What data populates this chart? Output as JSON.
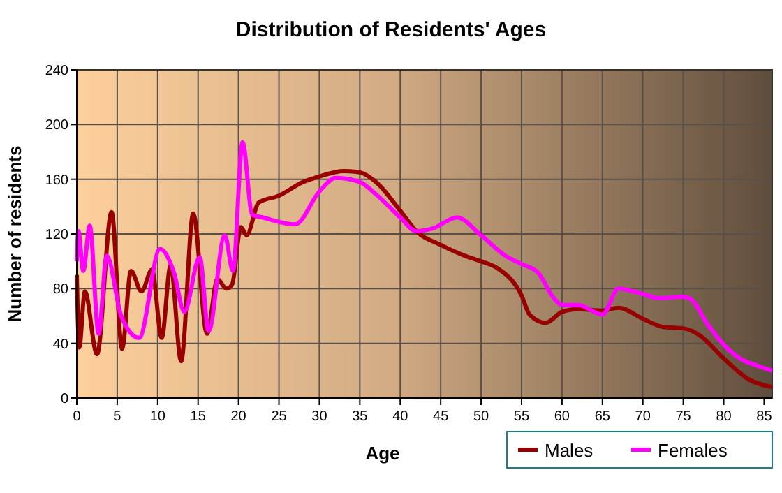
{
  "chart_data": {
    "type": "line",
    "title": "Distribution of Residents' Ages",
    "xlabel": "Age",
    "ylabel": "Number of residents",
    "xlim": [
      0,
      86
    ],
    "ylim": [
      0,
      240
    ],
    "xticks": [
      0,
      5,
      10,
      15,
      20,
      25,
      30,
      35,
      40,
      45,
      50,
      55,
      60,
      65,
      70,
      75,
      80,
      85
    ],
    "yticks": [
      0,
      40,
      80,
      120,
      160,
      200,
      240
    ],
    "grid": true,
    "legend": "bottom right",
    "line_style": "solid",
    "marker": "none",
    "series": [
      {
        "name": "Males",
        "color": "#990000",
        "x": [
          0,
          0.3,
          1,
          2.5,
          4.3,
          5.6,
          6.7,
          8,
          9.3,
          10.5,
          11.6,
          12.9,
          14.4,
          16.1,
          17.4,
          18.5,
          19.2,
          20.3,
          21,
          22.5,
          25,
          28,
          30,
          33,
          35,
          37,
          40,
          42,
          45,
          48,
          50,
          52,
          55,
          56,
          58,
          60,
          62,
          65,
          67,
          70,
          72.5,
          75,
          77,
          80,
          83,
          86
        ],
        "values": [
          90,
          37,
          78,
          32,
          136,
          36,
          93,
          78,
          94,
          44,
          97,
          27,
          135,
          47,
          87,
          80,
          83,
          125,
          119,
          143,
          148,
          158,
          162,
          166,
          165,
          158,
          137,
          122,
          112,
          104,
          100,
          95,
          75,
          61,
          55,
          63,
          65,
          64,
          66,
          58,
          52,
          51,
          46,
          29,
          14,
          8
        ]
      },
      {
        "name": "Females",
        "color": "#ff00ff",
        "x": [
          0,
          0.2,
          0.8,
          1.6,
          2.7,
          3.7,
          5.5,
          7.7,
          10.3,
          12,
          13.3,
          15.2,
          16.3,
          18.3,
          19.3,
          20.5,
          21.7,
          23,
          27,
          30,
          32,
          35,
          37,
          40,
          42,
          44,
          47,
          50,
          53,
          55,
          57,
          59,
          60,
          62,
          65,
          67,
          70,
          72,
          75,
          76,
          78,
          80,
          82,
          84,
          86
        ],
        "values": [
          100,
          122,
          93,
          126,
          47,
          104,
          60,
          44,
          109,
          92,
          63,
          103,
          49,
          119,
          93,
          187,
          134,
          132,
          127,
          151,
          161,
          158,
          149,
          132,
          122,
          124,
          132,
          119,
          104,
          98,
          92,
          73,
          68,
          68,
          61,
          80,
          76,
          73,
          74,
          72,
          54,
          39,
          29,
          24,
          20
        ]
      }
    ]
  }
}
